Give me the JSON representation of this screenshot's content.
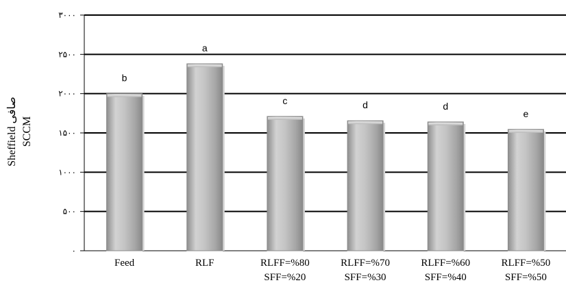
{
  "chart_data": {
    "type": "bar",
    "categories": [
      [
        "Feed"
      ],
      [
        "RLF"
      ],
      [
        "RLFF=%80",
        "SFF=%20"
      ],
      [
        "RLFF=%70",
        "SFF=%30"
      ],
      [
        "RLFF=%60",
        "SFF=%40"
      ],
      [
        "RLFF=%50",
        "SFF=%50"
      ]
    ],
    "values": [
      2000,
      2380,
      1710,
      1655,
      1640,
      1545
    ],
    "data_labels": [
      "b",
      "a",
      "c",
      "d",
      "d",
      "e"
    ],
    "ylabel": [
      "Sheffield صافی",
      "SCCM"
    ],
    "ylim": [
      0,
      3000
    ],
    "yticks": [
      0,
      500,
      1000,
      1500,
      2000,
      2500,
      3000
    ],
    "ytick_labels": [
      "۰",
      "۵۰۰",
      "۱۰۰۰",
      "۱۵۰۰",
      "۲۰۰۰",
      "۲۵۰۰",
      "۳۰۰۰"
    ],
    "grid": "horizontal",
    "colors": {
      "bar_fill": "#b0b0b0",
      "bar_edge": "#8a8a8a",
      "gridline": "#000000"
    }
  }
}
